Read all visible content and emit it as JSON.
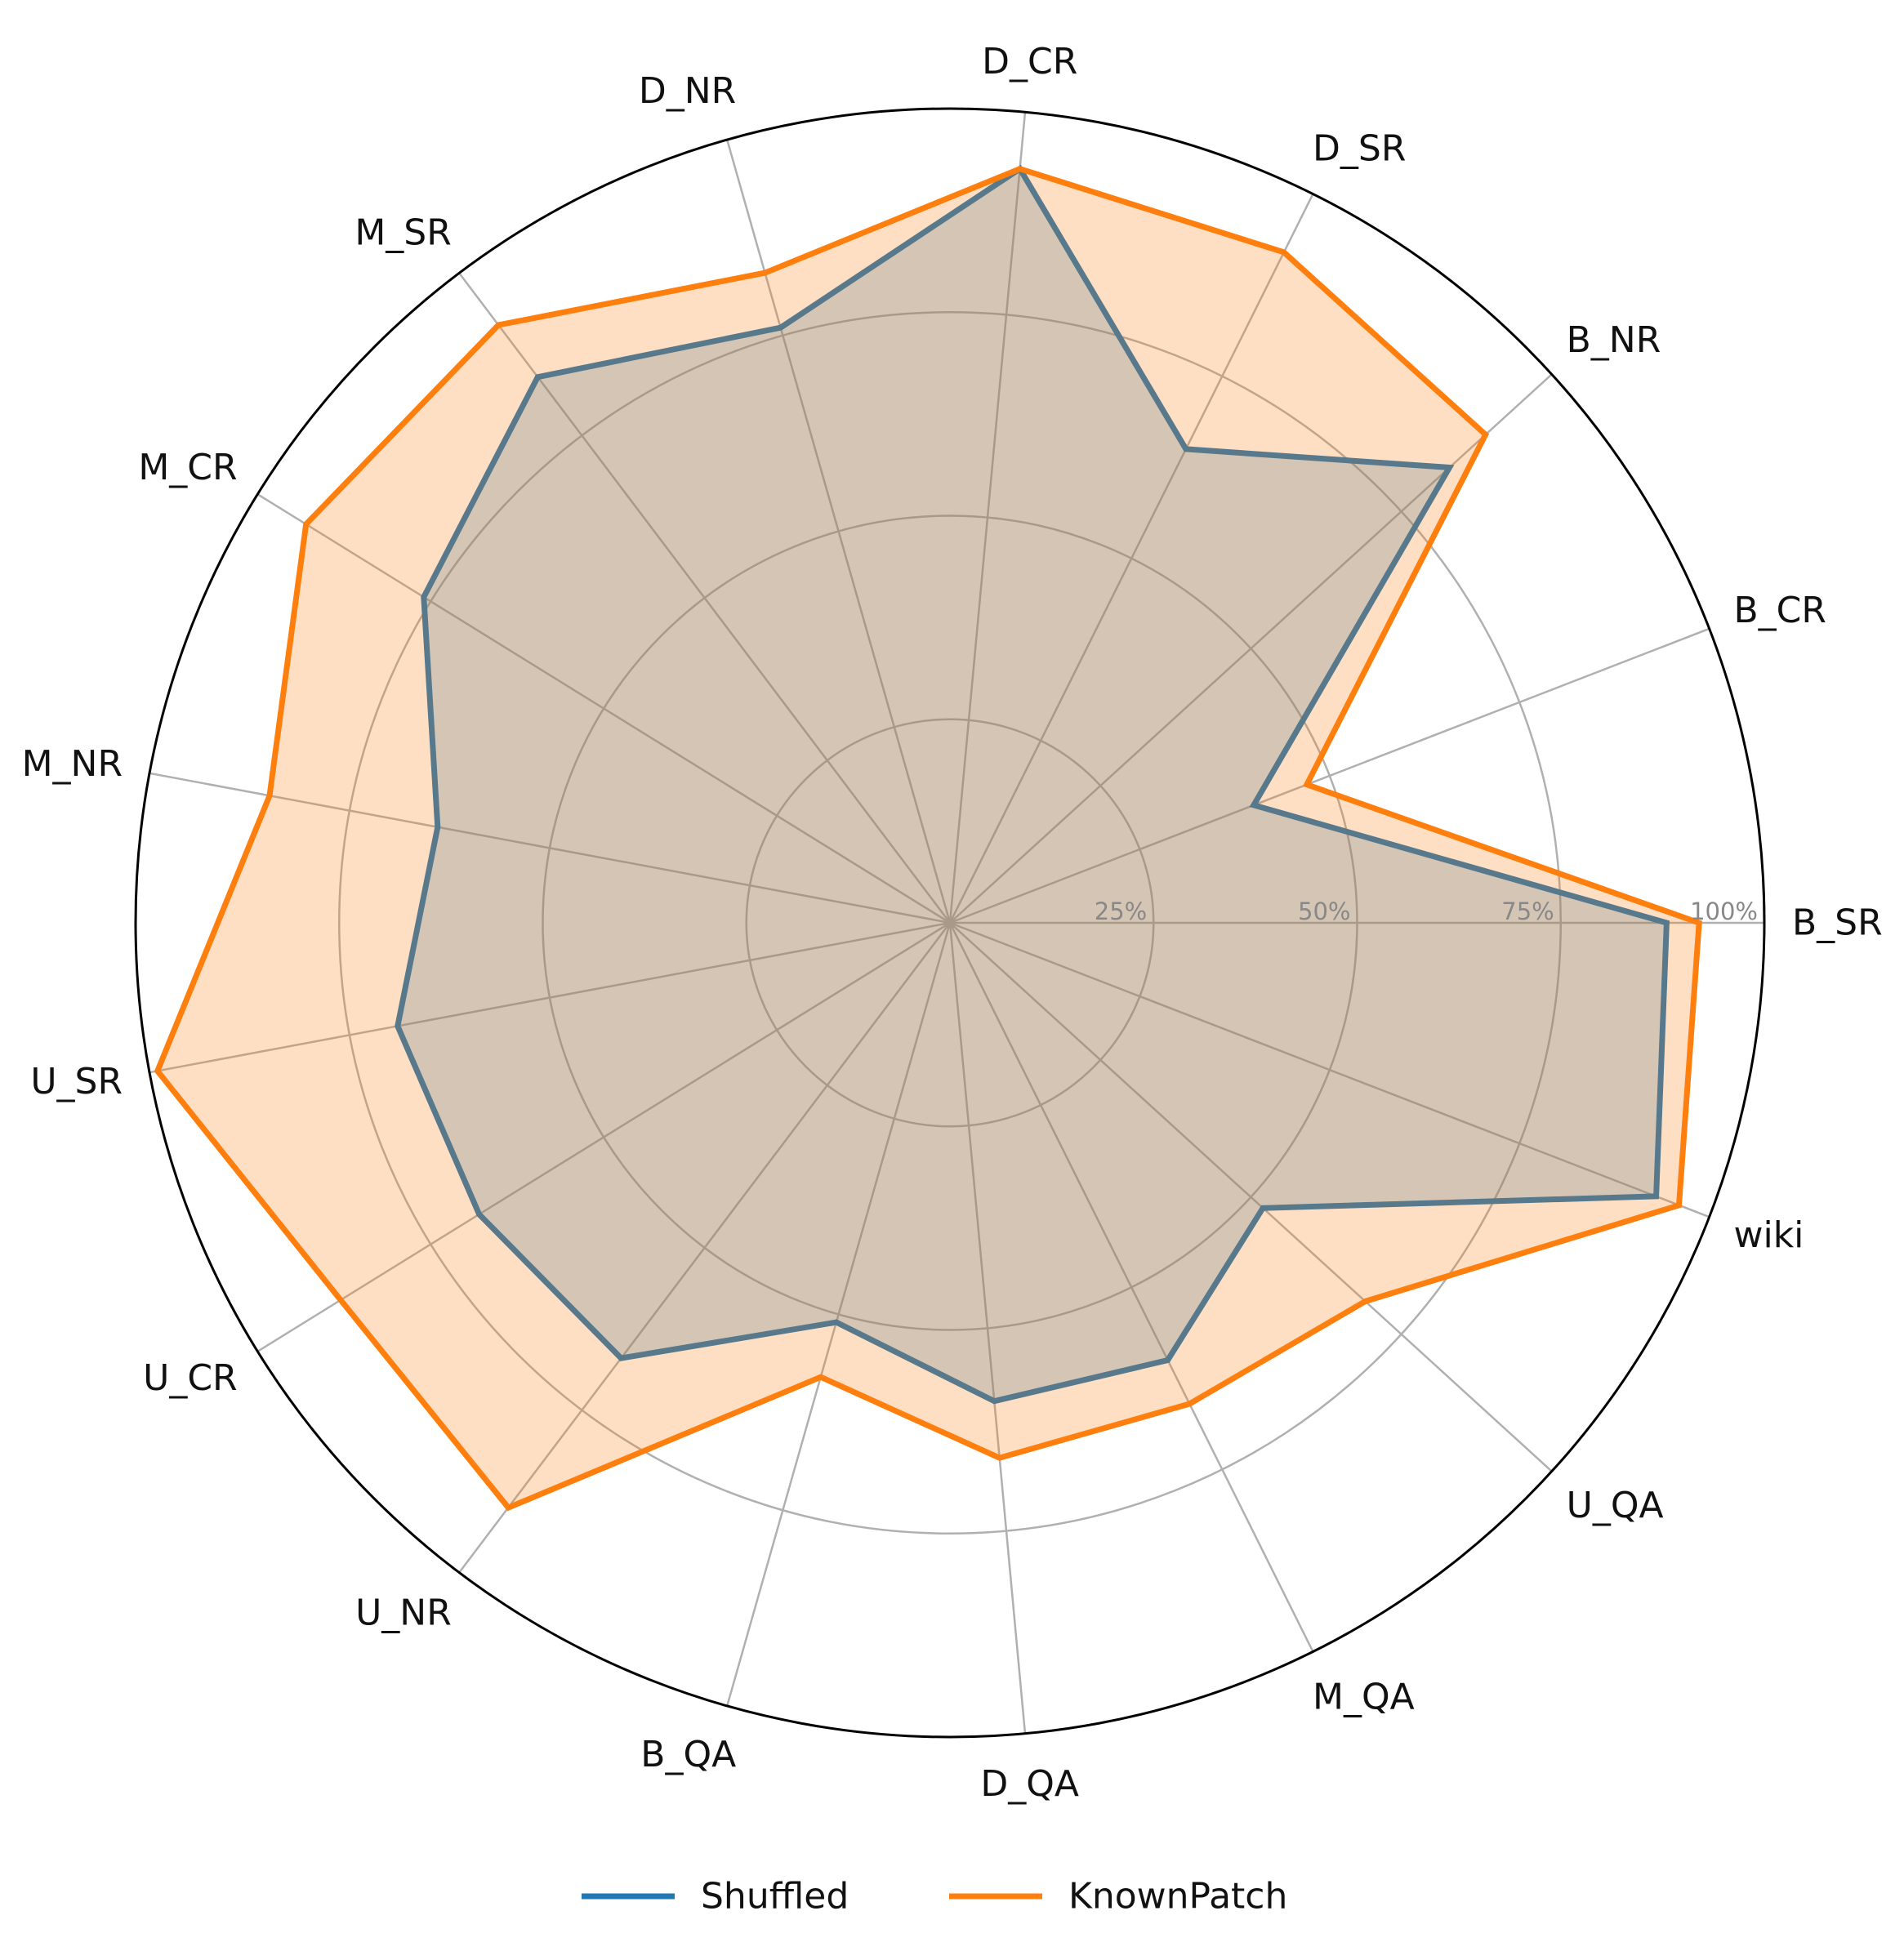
{
  "chart_data": {
    "type": "radar",
    "categories": [
      "B_SR",
      "B_CR",
      "B_NR",
      "D_SR",
      "D_CR",
      "D_NR",
      "M_SR",
      "M_CR",
      "M_NR",
      "U_SR",
      "U_CR",
      "U_NR",
      "B_QA",
      "D_QA",
      "M_QA",
      "U_QA",
      "wiki"
    ],
    "rlim": [
      0,
      100
    ],
    "rticks": [
      25,
      50,
      75,
      100
    ],
    "rtick_labels": [
      "25%",
      "50%",
      "75%",
      "100%"
    ],
    "grid": true,
    "legend_position": "bottom-center",
    "series": [
      {
        "name": "Shuffled",
        "color": "#1f77b4",
        "values": [
          88,
          40,
          83,
          65,
          93,
          76,
          84,
          76,
          64,
          69,
          68,
          67,
          51,
          59,
          60,
          52,
          93
        ]
      },
      {
        "name": "KnownPatch",
        "color": "#ff7f0e",
        "values": [
          92,
          47,
          89,
          92,
          93,
          83,
          92,
          93,
          85,
          99,
          88,
          90,
          58,
          66,
          66,
          69,
          96
        ]
      }
    ]
  }
}
